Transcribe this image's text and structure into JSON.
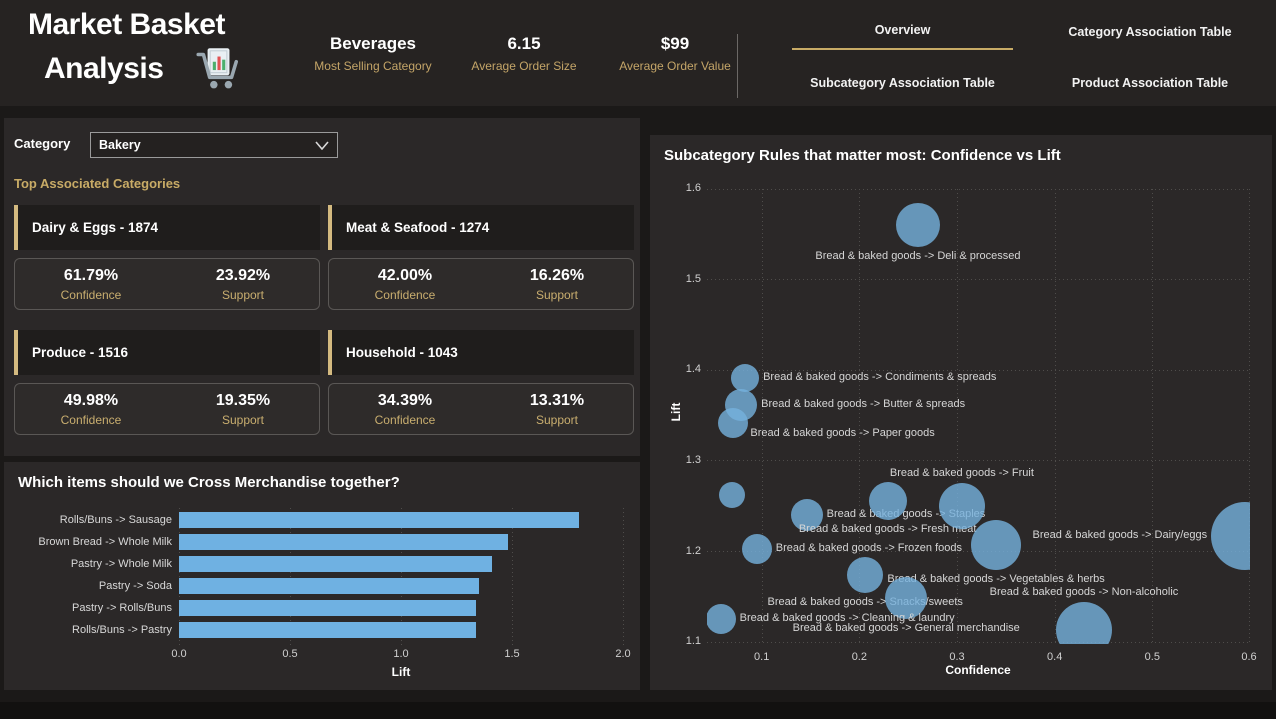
{
  "header": {
    "title_line1": "Market Basket",
    "title_line2": "Analysis",
    "kpis": [
      {
        "value": "Beverages",
        "label": "Most Selling Category"
      },
      {
        "value": "6.15",
        "label": "Average Order Size"
      },
      {
        "value": "$99",
        "label": "Average Order Value"
      }
    ],
    "nav_tabs": [
      {
        "label": "Overview",
        "active": true
      },
      {
        "label": "Category Association Table",
        "active": false
      },
      {
        "label": "Subcategory Association Table",
        "active": false
      },
      {
        "label": "Product Association Table",
        "active": false
      }
    ]
  },
  "filter": {
    "label": "Category",
    "selected": "Bakery"
  },
  "associations": {
    "section_title": "Top Associated Categories",
    "confidence_label": "Confidence",
    "support_label": "Support",
    "cards": [
      {
        "title": "Dairy & Eggs - 1874",
        "confidence": "61.79%",
        "support": "23.92%"
      },
      {
        "title": "Meat & Seafood - 1274",
        "confidence": "42.00%",
        "support": "16.26%"
      },
      {
        "title": "Produce - 1516",
        "confidence": "49.98%",
        "support": "19.35%"
      },
      {
        "title": "Household - 1043",
        "confidence": "34.39%",
        "support": "13.31%"
      }
    ]
  },
  "colors": {
    "accent_gold": "#c8ab66",
    "bar_blue": "#6fb1e2",
    "bubble_blue": "rgba(118,177,221,0.8)"
  },
  "chart_data": [
    {
      "type": "bar",
      "orientation": "horizontal",
      "title": "Which items should we Cross Merchandise together?",
      "categories": [
        "Rolls/Buns -> Sausage",
        "Brown Bread -> Whole Milk",
        "Pastry -> Whole Milk",
        "Pastry -> Soda",
        "Pastry -> Rolls/Buns",
        "Rolls/Buns -> Pastry"
      ],
      "values": [
        1.8,
        1.48,
        1.41,
        1.35,
        1.34,
        1.34
      ],
      "xlabel": "Lift",
      "xlim": [
        0,
        2.0
      ],
      "xticks": [
        "0.0",
        "0.5",
        "1.0",
        "1.5",
        "2.0"
      ],
      "grid": "dotted-vertical"
    },
    {
      "type": "scatter",
      "title": "Subcategory Rules that matter most: Confidence vs Lift",
      "xlabel": "Confidence",
      "ylabel": "Lift",
      "xlim": [
        0.044,
        0.6
      ],
      "ylim": [
        1.098,
        1.6
      ],
      "xticks": [
        "0.1",
        "0.2",
        "0.3",
        "0.4",
        "0.5",
        "0.6"
      ],
      "yticks": [
        "1.1",
        "1.2",
        "1.3",
        "1.4",
        "1.5",
        "1.6"
      ],
      "grid": "dotted-both",
      "points": [
        {
          "rule": "Bread & baked goods -> Deli & processed",
          "confidence": 0.26,
          "lift": 1.56,
          "r": 22,
          "label_pos": "below"
        },
        {
          "rule": "Bread & baked goods -> Condiments & spreads",
          "confidence": 0.083,
          "lift": 1.392,
          "r": 14,
          "label_pos": "right"
        },
        {
          "rule": "Bread & baked goods -> Butter & spreads",
          "confidence": 0.079,
          "lift": 1.362,
          "r": 16,
          "label_pos": "right"
        },
        {
          "rule": "Bread & baked goods -> Paper goods",
          "confidence": 0.071,
          "lift": 1.342,
          "r": 15,
          "label_pos": "below-right"
        },
        {
          "rule": "",
          "confidence": 0.07,
          "lift": 1.262,
          "r": 13,
          "label_pos": "none"
        },
        {
          "rule": "Bread & baked goods -> Staples",
          "confidence": 0.146,
          "lift": 1.24,
          "r": 16,
          "label_pos": "right"
        },
        {
          "rule": "Bread & baked goods -> Fresh meat",
          "confidence": 0.229,
          "lift": 1.256,
          "r": 19,
          "label_pos": "below"
        },
        {
          "rule": "Bread & baked goods -> Fruit",
          "confidence": 0.305,
          "lift": 1.25,
          "r": 23,
          "label_pos": "above"
        },
        {
          "rule": "Bread & baked goods -> Vegetables & herbs",
          "confidence": 0.34,
          "lift": 1.207,
          "r": 25,
          "label_pos": "below"
        },
        {
          "rule": "Bread & baked goods -> Frozen foods",
          "confidence": 0.095,
          "lift": 1.203,
          "r": 15,
          "label_pos": "right"
        },
        {
          "rule": "Bread & baked goods -> Snacks/sweets",
          "confidence": 0.206,
          "lift": 1.174,
          "r": 18,
          "label_pos": "below"
        },
        {
          "rule": "Bread & baked goods -> General merchandise",
          "confidence": 0.248,
          "lift": 1.149,
          "r": 21,
          "label_pos": "below"
        },
        {
          "rule": "Bread & baked goods -> Non-alcoholic",
          "confidence": 0.43,
          "lift": 1.113,
          "r": 28,
          "label_pos": "above"
        },
        {
          "rule": "Bread & baked goods -> Cleaning & laundry",
          "confidence": 0.058,
          "lift": 1.126,
          "r": 15,
          "label_pos": "right"
        },
        {
          "rule": "Bread & baked goods -> Dairy/eggs",
          "confidence": 0.595,
          "lift": 1.217,
          "r": 34,
          "label_pos": "left"
        }
      ]
    }
  ]
}
